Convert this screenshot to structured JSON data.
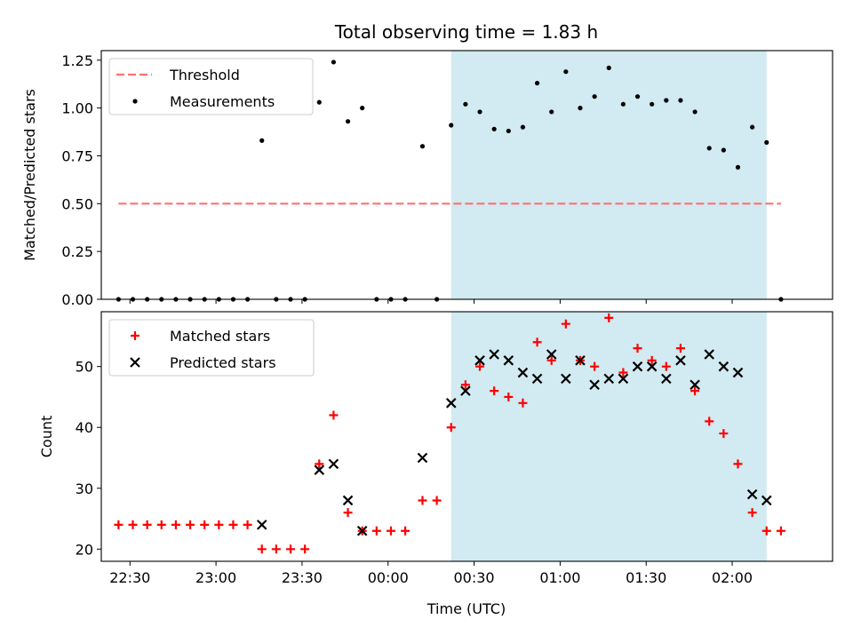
{
  "chart_data": {
    "type": "scatter",
    "title": "Total observing time = 1.83 h",
    "xlabel": "Time (UTC)",
    "x_unit": "minutes from 00:00 UTC",
    "xlim": [
      -100,
      155
    ],
    "x_ticks": [
      {
        "value": -90,
        "label": "22:30"
      },
      {
        "value": -60,
        "label": "23:00"
      },
      {
        "value": -30,
        "label": "23:30"
      },
      {
        "value": 0,
        "label": "00:00"
      },
      {
        "value": 30,
        "label": "00:30"
      },
      {
        "value": 60,
        "label": "01:00"
      },
      {
        "value": 90,
        "label": "01:30"
      },
      {
        "value": 120,
        "label": "02:00"
      }
    ],
    "shaded_interval": [
      22,
      132
    ],
    "shaded_color": "#add8e6",
    "panels": [
      {
        "id": "top",
        "ylabel": "Matched/Predicted stars",
        "ylim": [
          0,
          1.3
        ],
        "y_ticks": [
          "0.00",
          "0.25",
          "0.50",
          "0.75",
          "1.00",
          "1.25"
        ],
        "threshold": {
          "name": "Threshold",
          "value": 0.5,
          "x_range": [
            -94,
            137
          ],
          "color": "#ff7070"
        },
        "legend": [
          "Threshold",
          "Measurements"
        ],
        "series": [
          {
            "name": "Measurements",
            "marker": "dot",
            "color": "#000000",
            "points": [
              [
                -94,
                0
              ],
              [
                -89,
                0
              ],
              [
                -84,
                0
              ],
              [
                -79,
                0
              ],
              [
                -74,
                0
              ],
              [
                -69,
                0
              ],
              [
                -64,
                0
              ],
              [
                -59,
                0
              ],
              [
                -54,
                0
              ],
              [
                -49,
                0
              ],
              [
                -44,
                0.83
              ],
              [
                -39,
                0
              ],
              [
                -34,
                0
              ],
              [
                -29,
                0
              ],
              [
                -24,
                1.03
              ],
              [
                -19,
                1.24
              ],
              [
                -14,
                0.93
              ],
              [
                -9,
                1.0
              ],
              [
                -4,
                0
              ],
              [
                1,
                0
              ],
              [
                6,
                0
              ],
              [
                12,
                0.8
              ],
              [
                17,
                0
              ],
              [
                22,
                0.91
              ],
              [
                27,
                1.02
              ],
              [
                32,
                0.98
              ],
              [
                37,
                0.89
              ],
              [
                42,
                0.88
              ],
              [
                47,
                0.9
              ],
              [
                52,
                1.13
              ],
              [
                57,
                0.98
              ],
              [
                62,
                1.19
              ],
              [
                67,
                1.0
              ],
              [
                72,
                1.06
              ],
              [
                77,
                1.21
              ],
              [
                82,
                1.02
              ],
              [
                87,
                1.06
              ],
              [
                92,
                1.02
              ],
              [
                97,
                1.04
              ],
              [
                102,
                1.04
              ],
              [
                107,
                0.98
              ],
              [
                112,
                0.79
              ],
              [
                117,
                0.78
              ],
              [
                122,
                0.69
              ],
              [
                127,
                0.9
              ],
              [
                132,
                0.82
              ],
              [
                137,
                0
              ]
            ]
          }
        ]
      },
      {
        "id": "bottom",
        "ylabel": "Count",
        "ylim": [
          18,
          59
        ],
        "y_ticks": [
          "20",
          "30",
          "40",
          "50"
        ],
        "legend": [
          "Matched stars",
          "Predicted stars"
        ],
        "series": [
          {
            "name": "Matched stars",
            "marker": "plus",
            "color": "#ff0000",
            "points": [
              [
                -94,
                24
              ],
              [
                -89,
                24
              ],
              [
                -84,
                24
              ],
              [
                -79,
                24
              ],
              [
                -74,
                24
              ],
              [
                -69,
                24
              ],
              [
                -64,
                24
              ],
              [
                -59,
                24
              ],
              [
                -54,
                24
              ],
              [
                -49,
                24
              ],
              [
                -44,
                20
              ],
              [
                -39,
                20
              ],
              [
                -34,
                20
              ],
              [
                -29,
                20
              ],
              [
                -24,
                34
              ],
              [
                -19,
                42
              ],
              [
                -14,
                26
              ],
              [
                -9,
                23
              ],
              [
                -4,
                23
              ],
              [
                1,
                23
              ],
              [
                6,
                23
              ],
              [
                12,
                28
              ],
              [
                17,
                28
              ],
              [
                22,
                40
              ],
              [
                27,
                47
              ],
              [
                32,
                50
              ],
              [
                37,
                46
              ],
              [
                42,
                45
              ],
              [
                47,
                44
              ],
              [
                52,
                54
              ],
              [
                57,
                51
              ],
              [
                62,
                57
              ],
              [
                67,
                51
              ],
              [
                72,
                50
              ],
              [
                77,
                58
              ],
              [
                82,
                49
              ],
              [
                87,
                53
              ],
              [
                92,
                51
              ],
              [
                97,
                50
              ],
              [
                102,
                53
              ],
              [
                107,
                46
              ],
              [
                112,
                41
              ],
              [
                117,
                39
              ],
              [
                122,
                34
              ],
              [
                127,
                26
              ],
              [
                132,
                23
              ],
              [
                137,
                23
              ]
            ]
          },
          {
            "name": "Predicted stars",
            "marker": "x",
            "color": "#000000",
            "points": [
              [
                -44,
                24
              ],
              [
                -24,
                33
              ],
              [
                -19,
                34
              ],
              [
                -14,
                28
              ],
              [
                -9,
                23
              ],
              [
                12,
                35
              ],
              [
                22,
                44
              ],
              [
                27,
                46
              ],
              [
                32,
                51
              ],
              [
                37,
                52
              ],
              [
                42,
                51
              ],
              [
                47,
                49
              ],
              [
                52,
                48
              ],
              [
                57,
                52
              ],
              [
                62,
                48
              ],
              [
                67,
                51
              ],
              [
                72,
                47
              ],
              [
                77,
                48
              ],
              [
                82,
                48
              ],
              [
                87,
                50
              ],
              [
                92,
                50
              ],
              [
                97,
                48
              ],
              [
                102,
                51
              ],
              [
                107,
                47
              ],
              [
                112,
                52
              ],
              [
                117,
                50
              ],
              [
                122,
                49
              ],
              [
                127,
                29
              ],
              [
                132,
                28
              ]
            ]
          }
        ]
      }
    ]
  }
}
